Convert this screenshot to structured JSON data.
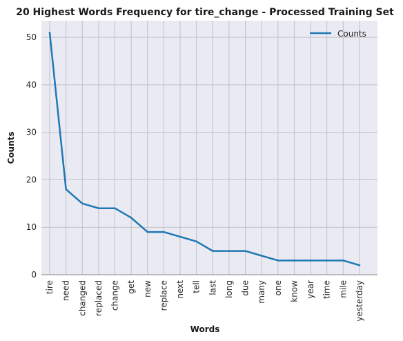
{
  "chart_data": {
    "type": "line",
    "title": "20 Highest Words Frequency for tire_change - Processed Training Set",
    "xlabel": "Words",
    "ylabel": "Counts",
    "categories": [
      "tire",
      "need",
      "changed",
      "replaced",
      "change",
      "get",
      "new",
      "replace",
      "next",
      "tell",
      "last",
      "long",
      "due",
      "many",
      "one",
      "know",
      "year",
      "time",
      "mile",
      "yesterday"
    ],
    "series": [
      {
        "name": "Counts",
        "values": [
          51,
          18,
          15,
          14,
          14,
          12,
          9,
          9,
          8,
          7,
          5,
          5,
          5,
          4,
          3,
          3,
          3,
          3,
          3,
          2
        ]
      }
    ],
    "ylim": [
      0,
      53.5
    ],
    "yticks": [
      0,
      10,
      20,
      30,
      40,
      50
    ],
    "grid": true,
    "legend_position": "top-right",
    "colors": {
      "line": "#1f77b4",
      "background": "#eaeaf2",
      "grid": "#c0c0c8"
    }
  }
}
